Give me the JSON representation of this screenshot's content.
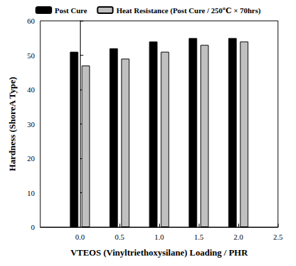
{
  "chart_data": {
    "type": "bar",
    "x_label": "VTEOS (Vinyltriethoxysilane) Loading / PHR",
    "y_label": "Hardness (ShoreA Type)",
    "x": [
      0,
      0.5,
      1,
      1.5,
      2
    ],
    "series": [
      {
        "name": "Post Cure",
        "color": "#000000",
        "values": [
          51,
          52,
          54,
          55,
          55
        ]
      },
      {
        "name": "Heat Resistance (Post Cure / 250℃ × 70hrs)",
        "color": "#c0c0c0",
        "values": [
          47,
          49,
          51,
          53,
          54
        ]
      }
    ],
    "xlim": [
      -0.5,
      2.5
    ],
    "xticks": [
      {
        "value": 0,
        "label": "0.0"
      },
      0.5,
      {
        "value": 1,
        "label": "1.0"
      },
      1.5,
      {
        "value": 2,
        "label": "2.0"
      },
      2.5
    ],
    "ylim": [
      0,
      60
    ],
    "yticks": [
      0,
      10,
      20,
      30,
      40,
      50,
      60
    ],
    "grid": false,
    "legend": "top"
  }
}
